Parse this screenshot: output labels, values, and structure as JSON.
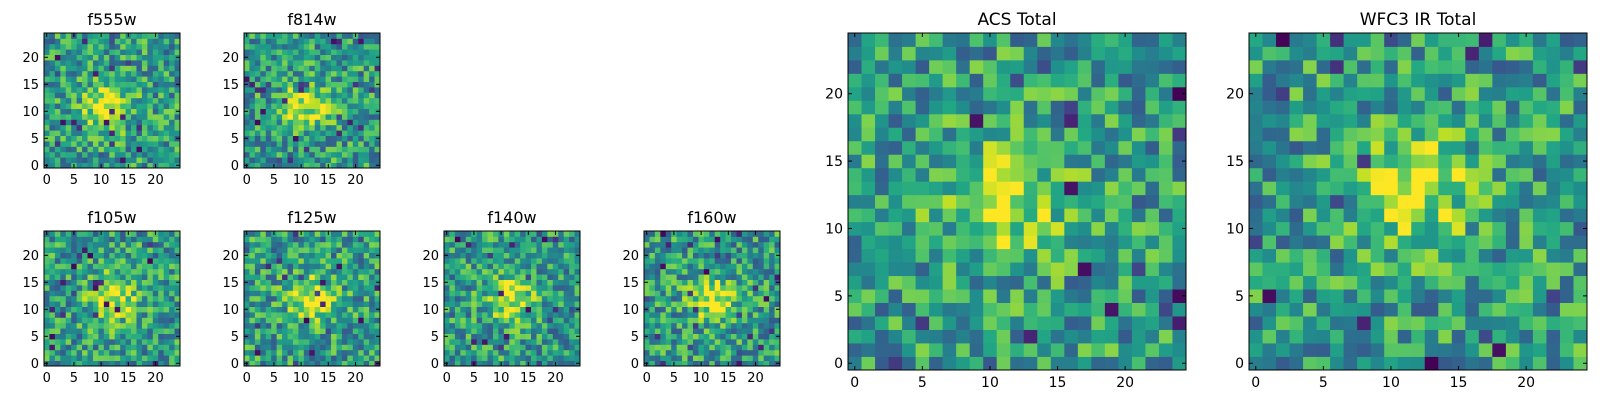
{
  "figure": {
    "description_colormap": "viridis",
    "background": "#ffffff"
  },
  "chart_data": [
    {
      "type": "heatmap",
      "title": "f555w",
      "grid": 25,
      "xlim": [
        -0.5,
        24.5
      ],
      "ylim": [
        -0.5,
        24.5
      ],
      "xticks": [
        "0",
        "5",
        "10",
        "15",
        "20"
      ],
      "yticks": [
        "0",
        "5",
        "10",
        "15",
        "20"
      ],
      "peak": [
        11,
        11
      ],
      "seed": 11
    },
    {
      "type": "heatmap",
      "title": "f814w",
      "grid": 25,
      "xlim": [
        -0.5,
        24.5
      ],
      "ylim": [
        -0.5,
        24.5
      ],
      "xticks": [
        "0",
        "5",
        "10",
        "15",
        "20"
      ],
      "yticks": [
        "0",
        "5",
        "10",
        "15",
        "20"
      ],
      "peak": [
        11,
        11
      ],
      "seed": 23
    },
    {
      "type": "heatmap",
      "title": "f105w",
      "grid": 25,
      "xlim": [
        -0.5,
        24.5
      ],
      "ylim": [
        -0.5,
        24.5
      ],
      "xticks": [
        "0",
        "5",
        "10",
        "15",
        "20"
      ],
      "yticks": [
        "0",
        "5",
        "10",
        "15",
        "20"
      ],
      "peak": [
        12,
        12
      ],
      "seed": 37
    },
    {
      "type": "heatmap",
      "title": "f125w",
      "grid": 25,
      "xlim": [
        -0.5,
        24.5
      ],
      "ylim": [
        -0.5,
        24.5
      ],
      "xticks": [
        "0",
        "5",
        "10",
        "15",
        "20"
      ],
      "yticks": [
        "0",
        "5",
        "10",
        "15",
        "20"
      ],
      "peak": [
        12,
        12
      ],
      "seed": 41
    },
    {
      "type": "heatmap",
      "title": "f140w",
      "grid": 25,
      "xlim": [
        -0.5,
        24.5
      ],
      "ylim": [
        -0.5,
        24.5
      ],
      "xticks": [
        "0",
        "5",
        "10",
        "15",
        "20"
      ],
      "yticks": [
        "0",
        "5",
        "10",
        "15",
        "20"
      ],
      "peak": [
        12,
        12
      ],
      "seed": 53
    },
    {
      "type": "heatmap",
      "title": "f160w",
      "grid": 25,
      "xlim": [
        -0.5,
        24.5
      ],
      "ylim": [
        -0.5,
        24.5
      ],
      "xticks": [
        "0",
        "5",
        "10",
        "15",
        "20"
      ],
      "yticks": [
        "0",
        "5",
        "10",
        "15",
        "20"
      ],
      "peak": [
        12,
        12
      ],
      "seed": 67
    },
    {
      "type": "heatmap",
      "title": "ACS Total",
      "grid": 25,
      "xlim": [
        -0.5,
        24.5
      ],
      "ylim": [
        -0.5,
        24.5
      ],
      "xticks": [
        "0",
        "5",
        "10",
        "15",
        "20"
      ],
      "yticks": [
        "0",
        "5",
        "10",
        "15",
        "20"
      ],
      "peak": [
        11,
        12
      ],
      "seed": 79
    },
    {
      "type": "heatmap",
      "title": "WFC3 IR Total",
      "grid": 25,
      "xlim": [
        -0.5,
        24.5
      ],
      "ylim": [
        -0.5,
        24.5
      ],
      "xticks": [
        "0",
        "5",
        "10",
        "15",
        "20"
      ],
      "yticks": [
        "0",
        "5",
        "10",
        "15",
        "20"
      ],
      "peak": [
        12,
        13
      ],
      "seed": 97
    }
  ]
}
